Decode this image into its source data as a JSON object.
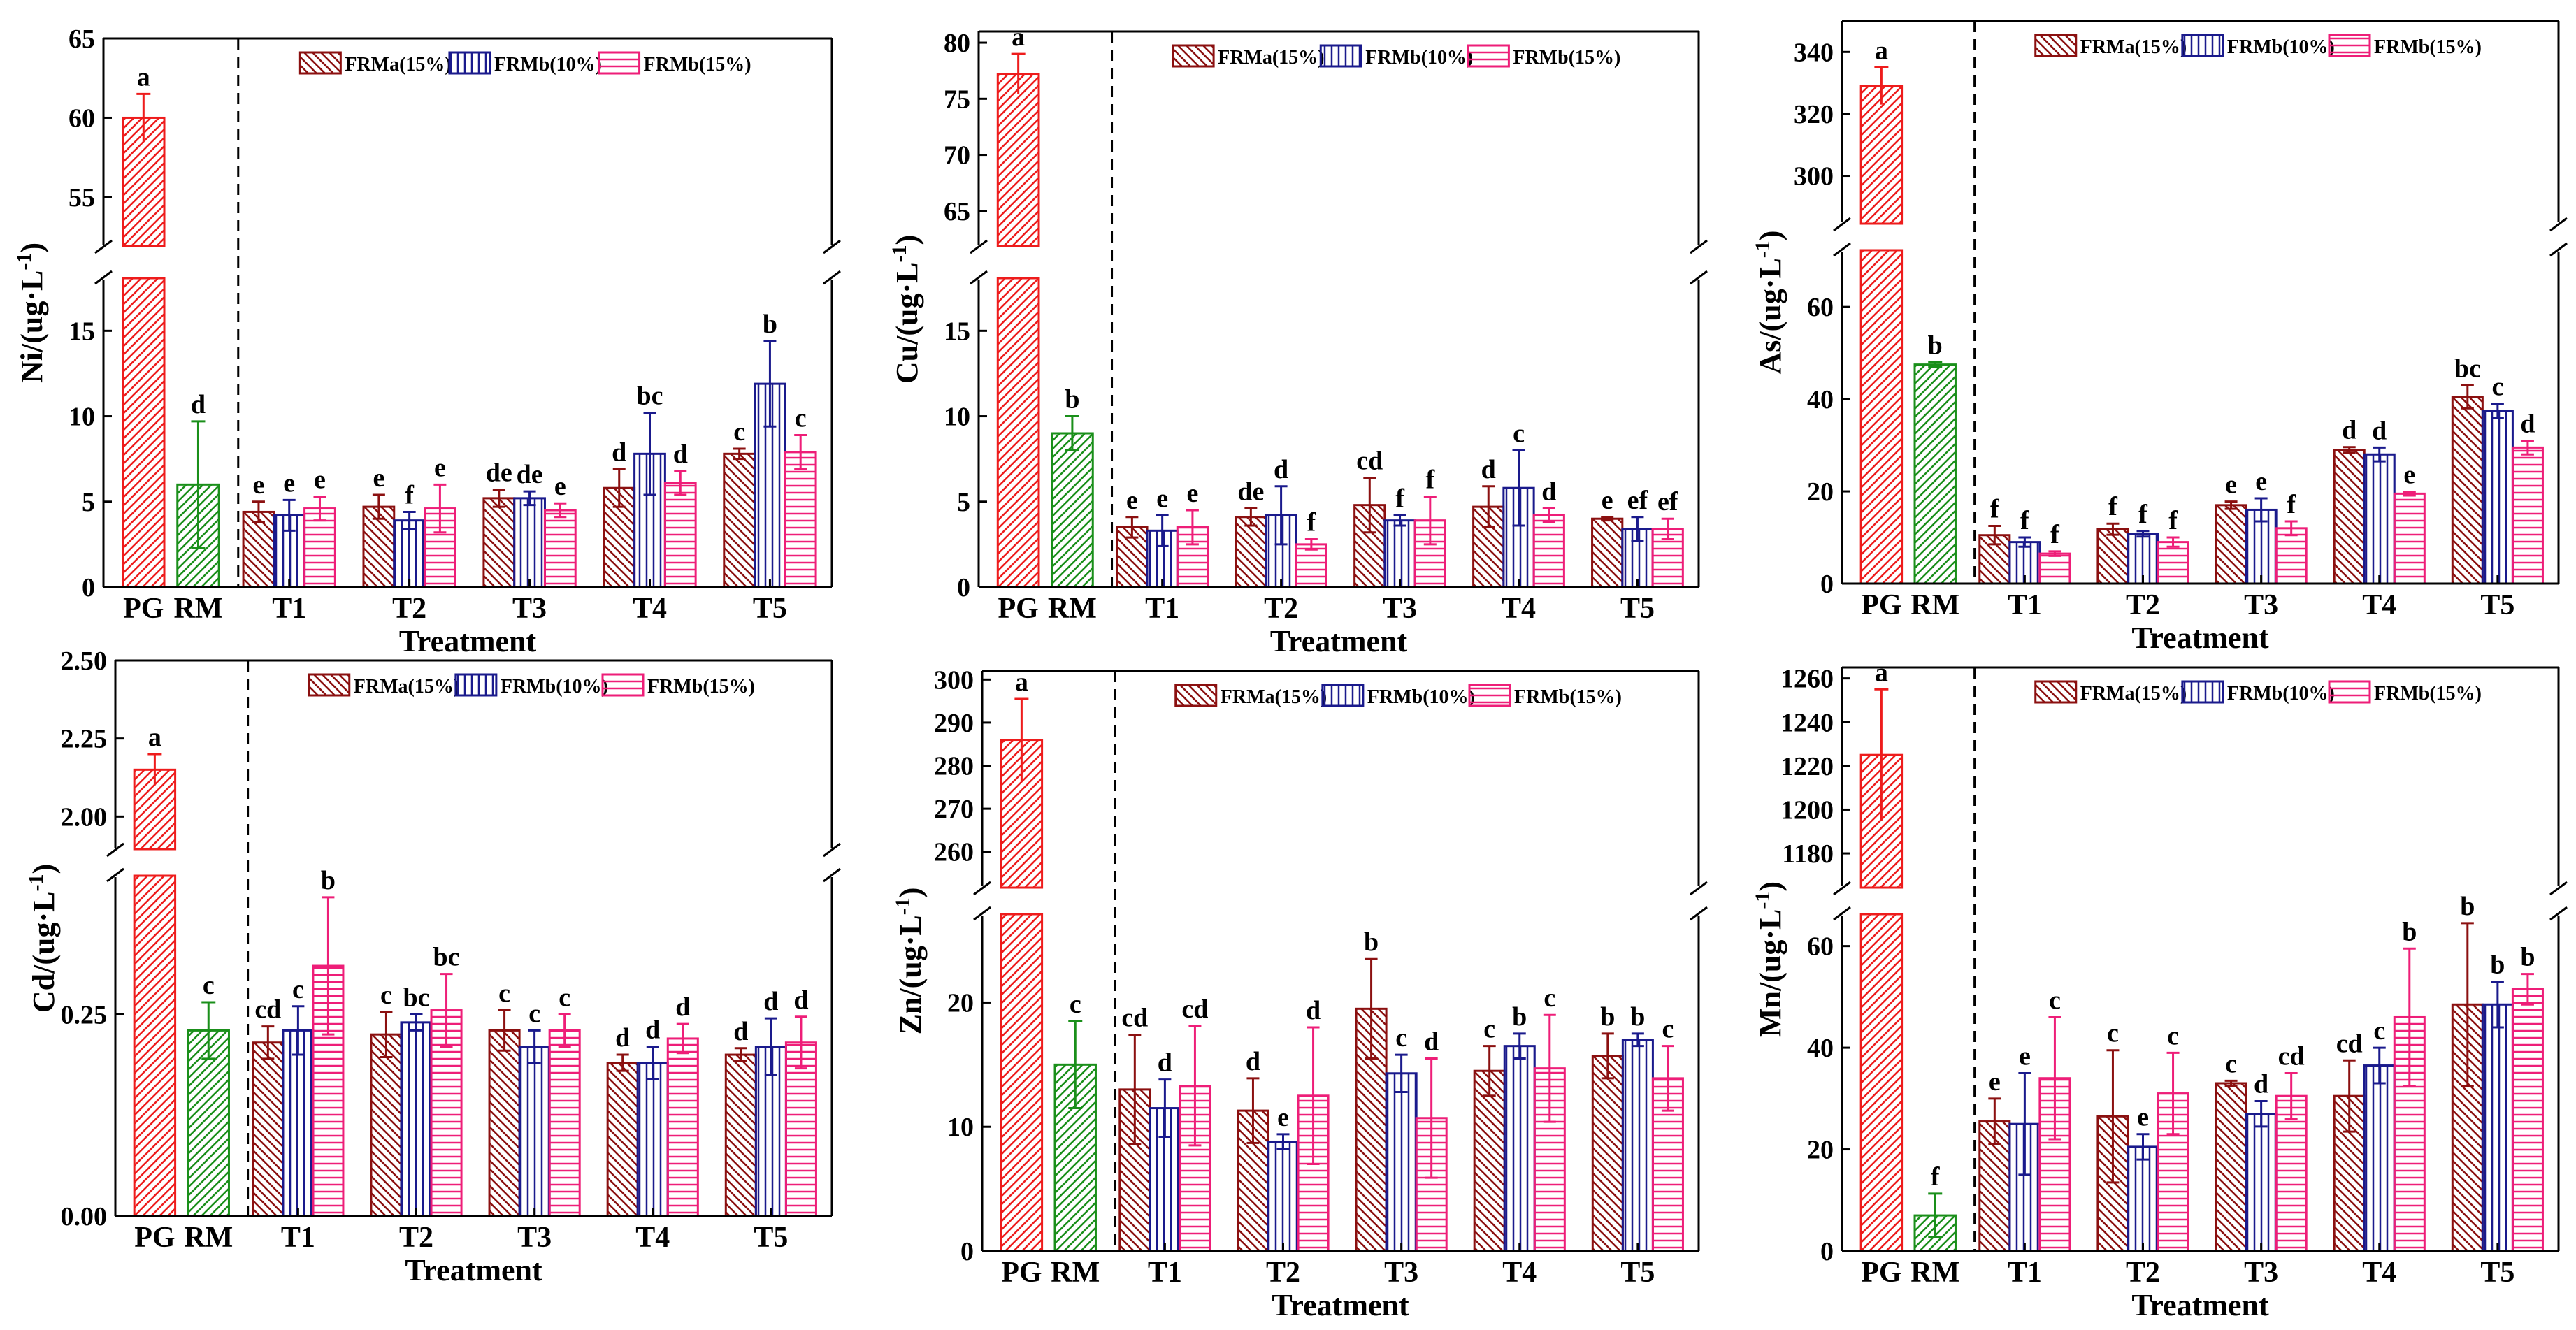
{
  "colors": {
    "PG": "#ee1c1c",
    "RM": "#1a8f1a",
    "FRMa(15%)": "#8b1010",
    "FRMb(10%)": "#1a1a8c",
    "FRMb(15%)": "#ee1e78"
  },
  "chart_data": [
    {
      "type": "bar",
      "id": "ni",
      "ylabel": "Ni/(ug·L",
      "ylabel_sup": "-1",
      "xlabel": "Treatment",
      "lower_ylim": [
        0,
        18
      ],
      "upper_ylim": [
        52,
        65
      ],
      "lower_ticks": [
        "0",
        "5",
        "10",
        "15"
      ],
      "lower_tick_values": [
        0,
        5,
        10,
        15
      ],
      "upper_ticks": [
        "55",
        "60",
        "65"
      ],
      "upper_tick_values": [
        55,
        60,
        65
      ],
      "controls": [
        {
          "name": "PG",
          "value": 60,
          "err": 1.5,
          "letter": "a"
        },
        {
          "name": "RM",
          "value": 6.0,
          "err": 3.7,
          "letter": "d"
        }
      ],
      "categories": [
        "T1",
        "T2",
        "T3",
        "T4",
        "T5"
      ],
      "series": [
        {
          "name": "FRMa(15%)",
          "values": [
            4.4,
            4.7,
            5.2,
            5.8,
            7.8
          ],
          "errors": [
            0.6,
            0.7,
            0.5,
            1.1,
            0.3
          ],
          "letters": [
            "e",
            "e",
            "de",
            "d",
            "c"
          ]
        },
        {
          "name": "FRMb(10%)",
          "values": [
            4.2,
            3.9,
            5.2,
            7.8,
            11.9
          ],
          "errors": [
            0.9,
            0.5,
            0.4,
            2.4,
            2.5
          ],
          "letters": [
            "e",
            "f",
            "de",
            "bc",
            "b"
          ]
        },
        {
          "name": "FRMb(15%)",
          "values": [
            4.6,
            4.6,
            4.5,
            6.1,
            7.9
          ],
          "errors": [
            0.7,
            1.4,
            0.4,
            0.7,
            1.0
          ],
          "letters": [
            "e",
            "e",
            "e",
            "d",
            "c"
          ]
        }
      ]
    },
    {
      "type": "bar",
      "id": "cu",
      "ylabel": "Cu/(ug·L",
      "ylabel_sup": "-1",
      "xlabel": "Treatment",
      "lower_ylim": [
        0,
        18
      ],
      "upper_ylim": [
        62,
        81
      ],
      "lower_ticks": [
        "0",
        "5",
        "10",
        "15"
      ],
      "lower_tick_values": [
        0,
        5,
        10,
        15
      ],
      "upper_ticks": [
        "65",
        "70",
        "75",
        "80"
      ],
      "upper_tick_values": [
        65,
        70,
        75,
        80
      ],
      "controls": [
        {
          "name": "PG",
          "value": 77.2,
          "err": 1.8,
          "letter": "a"
        },
        {
          "name": "RM",
          "value": 9.0,
          "err": 1.0,
          "letter": "b"
        }
      ],
      "categories": [
        "T1",
        "T2",
        "T3",
        "T4",
        "T5"
      ],
      "series": [
        {
          "name": "FRMa(15%)",
          "values": [
            3.5,
            4.1,
            4.8,
            4.7,
            4.0
          ],
          "errors": [
            0.6,
            0.5,
            1.6,
            1.2,
            0.1
          ],
          "letters": [
            "e",
            "de",
            "cd",
            "d",
            "e"
          ]
        },
        {
          "name": "FRMb(10%)",
          "values": [
            3.3,
            4.2,
            3.9,
            5.8,
            3.4
          ],
          "errors": [
            0.9,
            1.7,
            0.3,
            2.2,
            0.7
          ],
          "letters": [
            "e",
            "d",
            "f",
            "c",
            "ef"
          ]
        },
        {
          "name": "FRMb(15%)",
          "values": [
            3.5,
            2.5,
            3.9,
            4.2,
            3.4
          ],
          "errors": [
            1.0,
            0.3,
            1.4,
            0.4,
            0.6
          ],
          "letters": [
            "e",
            "f",
            "f",
            "d",
            "ef"
          ]
        }
      ]
    },
    {
      "type": "bar",
      "id": "as",
      "ylabel": "As/(ug·L",
      "ylabel_sup": "-1",
      "xlabel": "Treatment",
      "lower_ylim": [
        0,
        72
      ],
      "upper_ylim": [
        285,
        350
      ],
      "lower_ticks": [
        "0",
        "20",
        "40",
        "60"
      ],
      "lower_tick_values": [
        0,
        20,
        40,
        60
      ],
      "upper_ticks": [
        "300",
        "320",
        "340"
      ],
      "upper_tick_values": [
        300,
        320,
        340
      ],
      "controls": [
        {
          "name": "PG",
          "value": 329,
          "err": 6,
          "letter": "a"
        },
        {
          "name": "RM",
          "value": 47.5,
          "err": 0.5,
          "letter": "b"
        }
      ],
      "categories": [
        "T1",
        "T2",
        "T3",
        "T4",
        "T5"
      ],
      "series": [
        {
          "name": "FRMa(15%)",
          "values": [
            10.5,
            11.8,
            17,
            29,
            40.5
          ],
          "errors": [
            2.0,
            1.2,
            0.8,
            0.6,
            2.5
          ],
          "letters": [
            "f",
            "f",
            "e",
            "d",
            "bc"
          ]
        },
        {
          "name": "FRMb(10%)",
          "values": [
            9.0,
            10.8,
            16,
            28,
            37.5
          ],
          "errors": [
            1.0,
            0.6,
            2.5,
            1.5,
            1.5
          ],
          "letters": [
            "f",
            "f",
            "e",
            "d",
            "c"
          ]
        },
        {
          "name": "FRMb(15%)",
          "values": [
            6.5,
            9.0,
            12,
            19.5,
            29.5
          ],
          "errors": [
            0.5,
            1.0,
            1.5,
            0.4,
            1.5
          ],
          "letters": [
            "f",
            "f",
            "f",
            "e",
            "d"
          ]
        }
      ]
    },
    {
      "type": "bar",
      "id": "cd",
      "ylabel": "Cd/(ug·L",
      "ylabel_sup": "-1",
      "xlabel": "Treatment",
      "lower_ylim": [
        0,
        0.42
      ],
      "upper_ylim": [
        1.9,
        2.5
      ],
      "lower_ticks": [
        "0.00",
        "0.25"
      ],
      "lower_tick_values": [
        0,
        0.25
      ],
      "upper_ticks": [
        "2.00",
        "2.25",
        "2.50"
      ],
      "upper_tick_values": [
        2.0,
        2.25,
        2.5
      ],
      "controls": [
        {
          "name": "PG",
          "value": 2.15,
          "err": 0.05,
          "letter": "a"
        },
        {
          "name": "RM",
          "value": 0.23,
          "err": 0.035,
          "letter": "c"
        }
      ],
      "categories": [
        "T1",
        "T2",
        "T3",
        "T4",
        "T5"
      ],
      "series": [
        {
          "name": "FRMa(15%)",
          "values": [
            0.215,
            0.225,
            0.23,
            0.19,
            0.2
          ],
          "errors": [
            0.02,
            0.028,
            0.025,
            0.01,
            0.008
          ],
          "letters": [
            "cd",
            "c",
            "c",
            "d",
            "d"
          ]
        },
        {
          "name": "FRMb(10%)",
          "values": [
            0.23,
            0.24,
            0.21,
            0.19,
            0.21
          ],
          "errors": [
            0.03,
            0.01,
            0.02,
            0.02,
            0.035
          ],
          "letters": [
            "c",
            "bc",
            "c",
            "d",
            "d"
          ]
        },
        {
          "name": "FRMb(15%)",
          "values": [
            0.31,
            0.255,
            0.23,
            0.22,
            0.215
          ],
          "errors": [
            0.085,
            0.045,
            0.02,
            0.018,
            0.032
          ],
          "letters": [
            "b",
            "bc",
            "c",
            "d",
            "d"
          ]
        }
      ]
    },
    {
      "type": "bar",
      "id": "zn",
      "ylabel": "Zn/(ug·L",
      "ylabel_sup": "-1",
      "xlabel": "Treatment",
      "lower_ylim": [
        0,
        27
      ],
      "upper_ylim": [
        252,
        302
      ],
      "lower_ticks": [
        "0",
        "10",
        "20"
      ],
      "lower_tick_values": [
        0,
        10,
        20
      ],
      "upper_ticks": [
        "260",
        "270",
        "280",
        "290",
        "300"
      ],
      "upper_tick_values": [
        260,
        270,
        280,
        290,
        300
      ],
      "controls": [
        {
          "name": "PG",
          "value": 286,
          "err": 9.5,
          "letter": "a"
        },
        {
          "name": "RM",
          "value": 15,
          "err": 3.5,
          "letter": "c"
        }
      ],
      "categories": [
        "T1",
        "T2",
        "T3",
        "T4",
        "T5"
      ],
      "series": [
        {
          "name": "FRMa(15%)",
          "values": [
            13,
            11.3,
            19.5,
            14.5,
            15.7
          ],
          "errors": [
            4.4,
            2.6,
            4.0,
            2.0,
            1.8
          ],
          "letters": [
            "cd",
            "d",
            "b",
            "c",
            "b"
          ]
        },
        {
          "name": "FRMb(10%)",
          "values": [
            11.5,
            8.8,
            14.3,
            16.5,
            17
          ],
          "errors": [
            2.3,
            0.6,
            1.5,
            1.0,
            0.5
          ],
          "letters": [
            "d",
            "e",
            "c",
            "b",
            "b"
          ]
        },
        {
          "name": "FRMb(15%)",
          "values": [
            13.3,
            12.5,
            10.7,
            14.7,
            13.9
          ],
          "errors": [
            4.8,
            5.5,
            4.8,
            4.3,
            2.6
          ],
          "letters": [
            "cd",
            "d",
            "d",
            "c",
            "c"
          ]
        }
      ]
    },
    {
      "type": "bar",
      "id": "mn",
      "ylabel": "Mn/(ug·L",
      "ylabel_sup": "-1",
      "xlabel": "Treatment",
      "lower_ylim": [
        0,
        66
      ],
      "upper_ylim": [
        1165,
        1265
      ],
      "lower_ticks": [
        "0",
        "20",
        "40",
        "60"
      ],
      "lower_tick_values": [
        0,
        20,
        40,
        60
      ],
      "upper_ticks": [
        "1180",
        "1200",
        "1220",
        "1240",
        "1260"
      ],
      "upper_tick_values": [
        1180,
        1200,
        1220,
        1240,
        1260
      ],
      "controls": [
        {
          "name": "PG",
          "value": 1225,
          "err": 30,
          "letter": "a"
        },
        {
          "name": "RM",
          "value": 7,
          "err": 4.3,
          "letter": "f"
        }
      ],
      "categories": [
        "T1",
        "T2",
        "T3",
        "T4",
        "T5"
      ],
      "series": [
        {
          "name": "FRMa(15%)",
          "values": [
            25.5,
            26.5,
            33,
            30.5,
            48.5
          ],
          "errors": [
            4.5,
            13,
            0.5,
            7,
            16
          ],
          "letters": [
            "e",
            "c",
            "c",
            "cd",
            "b"
          ]
        },
        {
          "name": "FRMb(10%)",
          "values": [
            25,
            20.5,
            27,
            36.5,
            48.5
          ],
          "errors": [
            10,
            2.5,
            2.5,
            3.5,
            4.5
          ],
          "letters": [
            "e",
            "e",
            "d",
            "c",
            "b"
          ]
        },
        {
          "name": "FRMb(15%)",
          "values": [
            34,
            31,
            30.5,
            46,
            51.5
          ],
          "errors": [
            12,
            8,
            4.5,
            13.5,
            3
          ],
          "letters": [
            "c",
            "c",
            "cd",
            "b",
            "b"
          ]
        }
      ]
    }
  ]
}
